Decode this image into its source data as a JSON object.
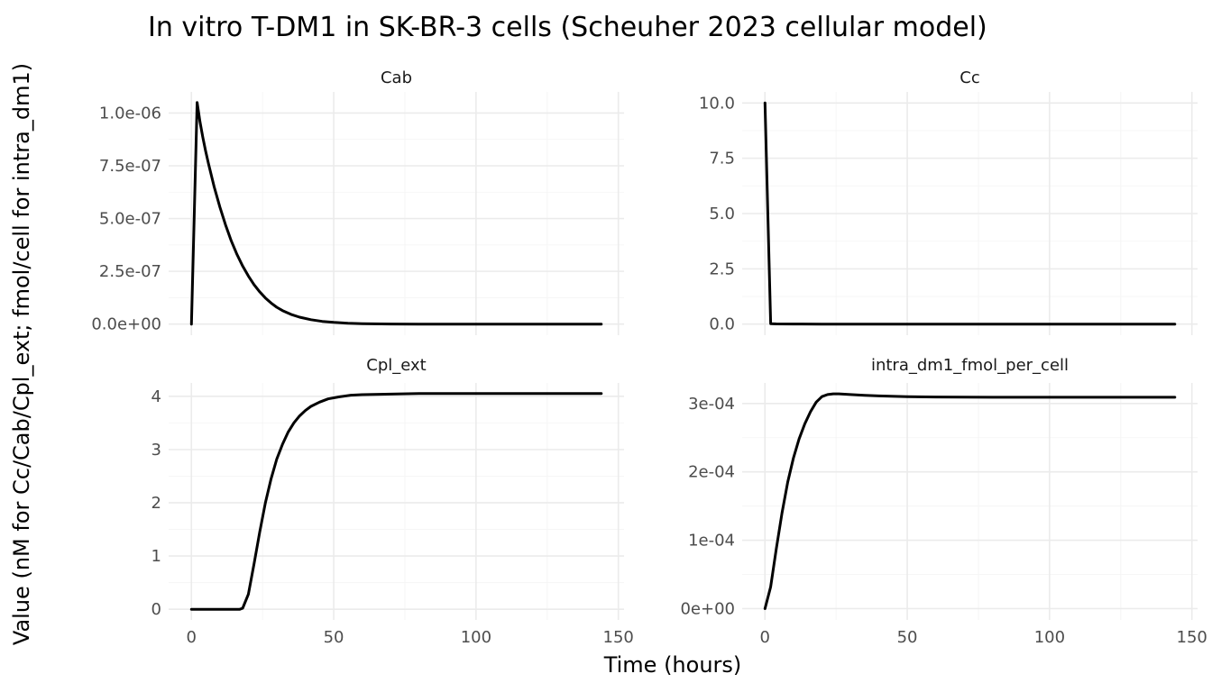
{
  "chart_data": {
    "type": "line",
    "title": "In vitro T-DM1 in SK-BR-3 cells (Scheuher 2023 cellular model)",
    "xlabel": "Time (hours)",
    "ylabel": "Value (nM for Cc/Cab/Cpl_ext; fmol/cell for intra_dm1)",
    "grid": true,
    "legend": "none",
    "line_color": "#000000",
    "grid_color": "#ebebeb",
    "xlim": [
      -8,
      152
    ],
    "x_ticks": [
      0,
      50,
      100,
      150
    ],
    "x_tick_labels": [
      "0",
      "50",
      "100",
      "150"
    ],
    "panels": [
      {
        "name": "Cab",
        "ylim": [
          -5.25e-08,
          1.1e-06
        ],
        "y_ticks": [
          0,
          2.5e-07,
          5e-07,
          7.5e-07,
          1e-06
        ],
        "y_tick_labels": [
          "0.0e+00",
          "2.5e-07",
          "5.0e-07",
          "7.5e-07",
          "1.0e-06"
        ],
        "x": [
          0,
          2,
          3,
          4,
          5,
          6,
          8,
          10,
          12,
          14,
          16,
          18,
          20,
          22,
          24,
          26,
          28,
          30,
          32,
          35,
          38,
          42,
          46,
          50,
          55,
          60,
          70,
          80,
          100,
          120,
          144
        ],
        "y": [
          0,
          1.05e-06,
          9.6e-07,
          8.85e-07,
          8.2e-07,
          7.6e-07,
          6.5e-07,
          5.55e-07,
          4.7e-07,
          3.95e-07,
          3.3e-07,
          2.75e-07,
          2.28e-07,
          1.87e-07,
          1.53e-07,
          1.24e-07,
          1e-07,
          8e-08,
          6.4e-08,
          4.6e-08,
          3.3e-08,
          2.1e-08,
          1.3e-08,
          8e-09,
          4e-09,
          2e-09,
          5e-10,
          1e-10,
          0,
          0,
          0
        ]
      },
      {
        "name": "Cc",
        "ylim": [
          -0.5,
          10.5
        ],
        "y_ticks": [
          0,
          2.5,
          5,
          7.5,
          10
        ],
        "y_tick_labels": [
          "0.0",
          "2.5",
          "5.0",
          "7.5",
          "10.0"
        ],
        "x": [
          0,
          2,
          4,
          10,
          20,
          40,
          60,
          80,
          100,
          120,
          144
        ],
        "y": [
          10,
          0.02,
          0.01,
          0.005,
          0.002,
          0.001,
          0.0005,
          0.0002,
          0.0001,
          5e-05,
          2e-05
        ]
      },
      {
        "name": "Cpl_ext",
        "ylim": [
          -0.2,
          4.25
        ],
        "y_ticks": [
          0,
          1,
          2,
          3,
          4
        ],
        "y_tick_labels": [
          "0",
          "1",
          "2",
          "3",
          "4"
        ],
        "x": [
          0,
          5,
          10,
          15,
          17,
          18,
          20,
          22,
          24,
          26,
          28,
          30,
          32,
          34,
          36,
          38,
          40,
          42,
          45,
          48,
          52,
          56,
          60,
          70,
          80,
          100,
          120,
          144
        ],
        "y": [
          0,
          0,
          0,
          0,
          0,
          0.02,
          0.28,
          0.85,
          1.45,
          2.0,
          2.45,
          2.82,
          3.1,
          3.33,
          3.5,
          3.63,
          3.73,
          3.81,
          3.89,
          3.95,
          3.99,
          4.02,
          4.03,
          4.04,
          4.05,
          4.05,
          4.05,
          4.05
        ]
      },
      {
        "name": "intra_dm1_fmol_per_cell",
        "ylim": [
          -1.65e-05,
          0.00033
        ],
        "y_ticks": [
          0,
          0.0001,
          0.0002,
          0.0003
        ],
        "y_tick_labels": [
          "0e+00",
          "1e-04",
          "2e-04",
          "3e-04"
        ],
        "x": [
          0,
          2,
          4,
          6,
          8,
          10,
          12,
          14,
          16,
          18,
          20,
          22,
          24,
          26,
          28,
          30,
          35,
          40,
          50,
          60,
          80,
          100,
          120,
          144
        ],
        "y": [
          0,
          3.2e-05,
          8.8e-05,
          0.00014,
          0.000185,
          0.00022,
          0.000248,
          0.00027,
          0.000288,
          0.000302,
          0.00031,
          0.000313,
          0.000314,
          0.000314,
          0.0003135,
          0.000313,
          0.000312,
          0.000311,
          0.00031,
          0.0003095,
          0.000309,
          0.000309,
          0.000309,
          0.000309
        ]
      }
    ]
  }
}
